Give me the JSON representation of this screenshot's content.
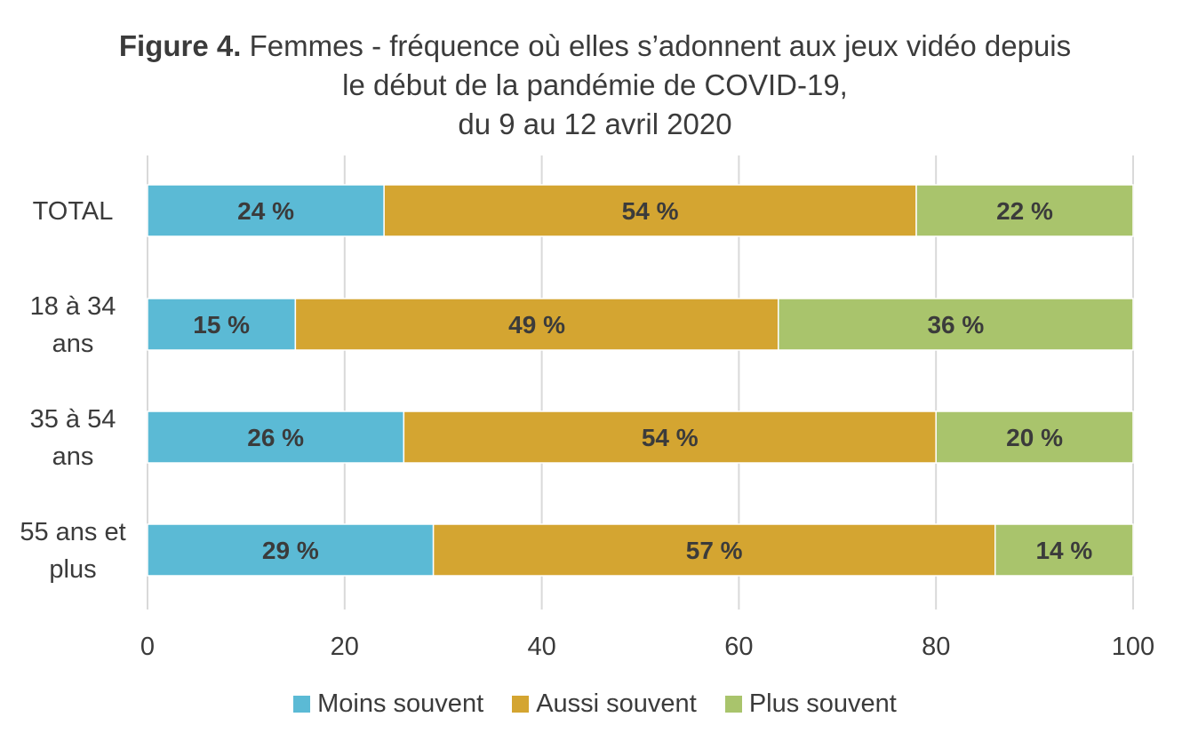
{
  "title": {
    "lead": "Figure 4.",
    "line1": " Femmes - fréquence où elles s’adonnent aux jeux vidéo depuis",
    "line2": "le début de la pandémie de COVID-19,",
    "line3": "du 9 au 12 avril 2020"
  },
  "chart_data": {
    "type": "bar",
    "orientation": "horizontal",
    "stacked": true,
    "categories": [
      "TOTAL",
      "18 à 34 ans",
      "35 à 54 ans",
      "55 ans et plus"
    ],
    "category_lines": [
      [
        "TOTAL"
      ],
      [
        "18 à 34",
        "ans"
      ],
      [
        "35 à 54",
        "ans"
      ],
      [
        "55 ans et",
        "plus"
      ]
    ],
    "series": [
      {
        "name": "Moins souvent",
        "color": "#5bbad5",
        "values": [
          24,
          15,
          26,
          29
        ],
        "labels": [
          "24 %",
          "15 %",
          "26 %",
          "29 %"
        ]
      },
      {
        "name": "Aussi souvent",
        "color": "#d4a531",
        "values": [
          54,
          49,
          54,
          57
        ],
        "labels": [
          "54 %",
          "49 %",
          "54 %",
          "57 %"
        ]
      },
      {
        "name": "Plus souvent",
        "color": "#a9c46c",
        "values": [
          22,
          36,
          20,
          14
        ],
        "labels": [
          "22 %",
          "36 %",
          "20 %",
          "14 %"
        ]
      }
    ],
    "xlim": [
      0,
      100
    ],
    "xticks": [
      0,
      20,
      40,
      60,
      80,
      100
    ],
    "xtick_labels": [
      "0",
      "20",
      "40",
      "60",
      "80",
      "100"
    ],
    "grid": true,
    "legend_position": "bottom"
  }
}
